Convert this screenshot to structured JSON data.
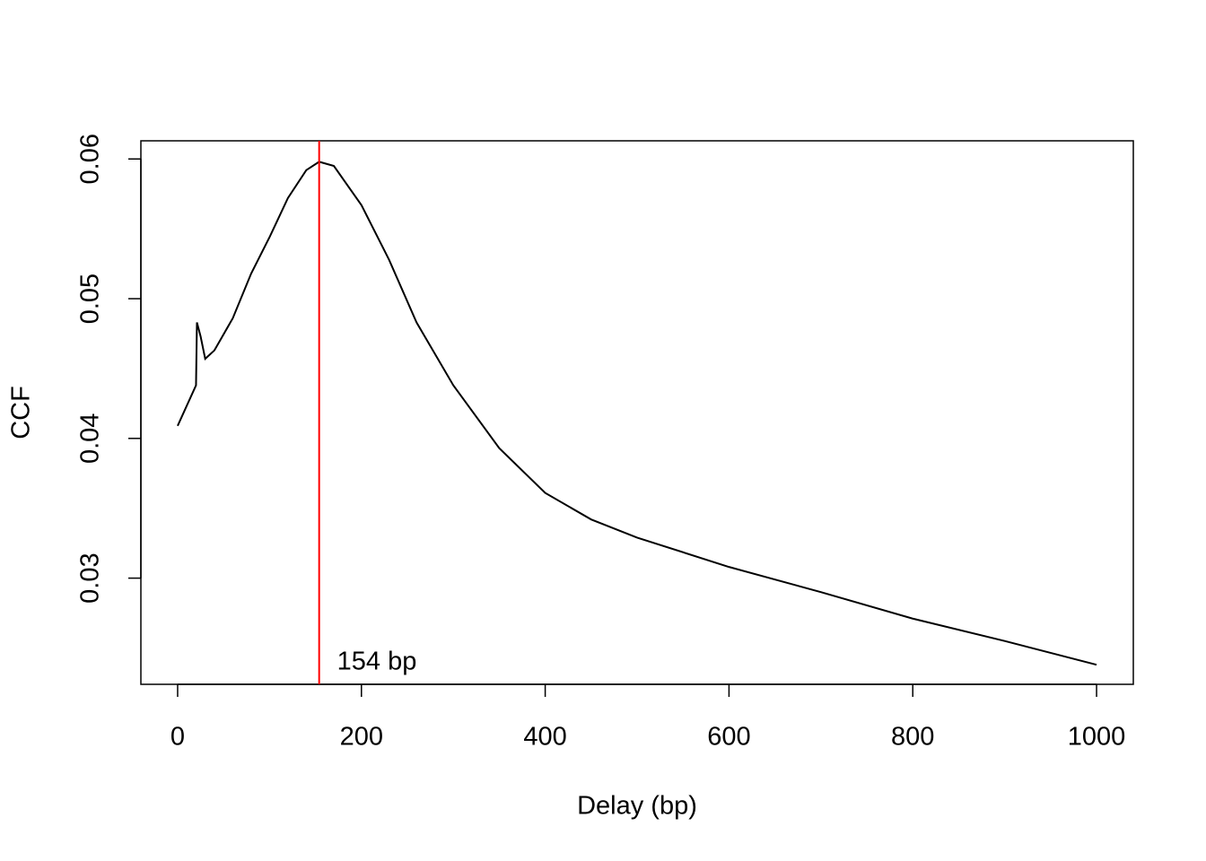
{
  "chart_data": {
    "type": "line",
    "xlabel": "Delay (bp)",
    "ylabel": "CCF",
    "x": [
      0,
      20,
      21,
      25,
      30,
      40,
      60,
      80,
      100,
      120,
      140,
      154,
      170,
      200,
      230,
      260,
      300,
      350,
      400,
      450,
      500,
      600,
      700,
      800,
      900,
      1000
    ],
    "series": [
      {
        "color": "#000000",
        "values": [
          0.0409,
          0.0438,
          0.0483,
          0.0473,
          0.0457,
          0.0463,
          0.0486,
          0.0518,
          0.0544,
          0.0572,
          0.0592,
          0.0598,
          0.0595,
          0.0567,
          0.0528,
          0.0483,
          0.0438,
          0.0393,
          0.0361,
          0.0342,
          0.0329,
          0.0308,
          0.029,
          0.0271,
          0.0255,
          0.0238
        ]
      }
    ],
    "xlim": [
      -40,
      1040
    ],
    "ylim": [
      0.0224,
      0.0613
    ],
    "xticks": [
      0,
      200,
      400,
      600,
      800,
      1000
    ],
    "yticks": [
      0.03,
      0.04,
      0.05,
      0.06
    ],
    "vline": {
      "x": 154,
      "label": "154 bp",
      "color": "#ff0000"
    }
  }
}
